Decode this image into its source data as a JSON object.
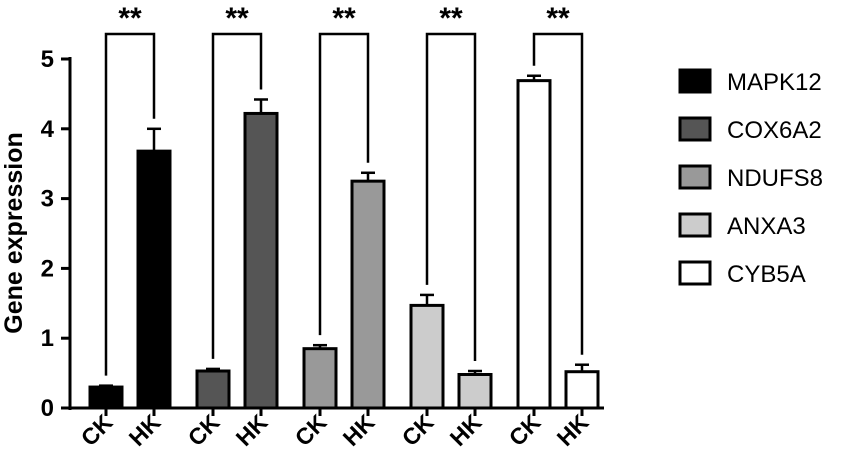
{
  "chart_data": {
    "type": "bar",
    "ylabel": "Gene expression",
    "ylim": [
      0,
      5
    ],
    "yticks": [
      "0",
      "1",
      "2",
      "3",
      "4",
      "5"
    ],
    "grid": false,
    "legend_position": "right",
    "groups": [
      {
        "name": "MAPK12",
        "color": "#000000",
        "significance": "**",
        "bars": [
          {
            "label": "CK",
            "value": 0.3,
            "error": 0.02
          },
          {
            "label": "HK",
            "value": 3.68,
            "error": 0.32
          }
        ]
      },
      {
        "name": "COX6A2",
        "color": "#555555",
        "significance": "**",
        "bars": [
          {
            "label": "CK",
            "value": 0.53,
            "error": 0.03
          },
          {
            "label": "HK",
            "value": 4.22,
            "error": 0.2
          }
        ]
      },
      {
        "name": "NDUFS8",
        "color": "#999999",
        "significance": "**",
        "bars": [
          {
            "label": "CK",
            "value": 0.85,
            "error": 0.05
          },
          {
            "label": "HK",
            "value": 3.25,
            "error": 0.12
          }
        ]
      },
      {
        "name": "ANXA3",
        "color": "#cccccc",
        "significance": "**",
        "bars": [
          {
            "label": "CK",
            "value": 1.47,
            "error": 0.15
          },
          {
            "label": "HK",
            "value": 0.48,
            "error": 0.05
          }
        ]
      },
      {
        "name": "CYB5A",
        "color": "#ffffff",
        "significance": "**",
        "bars": [
          {
            "label": "CK",
            "value": 4.69,
            "error": 0.07
          },
          {
            "label": "HK",
            "value": 0.52,
            "error": 0.1
          }
        ]
      }
    ]
  }
}
